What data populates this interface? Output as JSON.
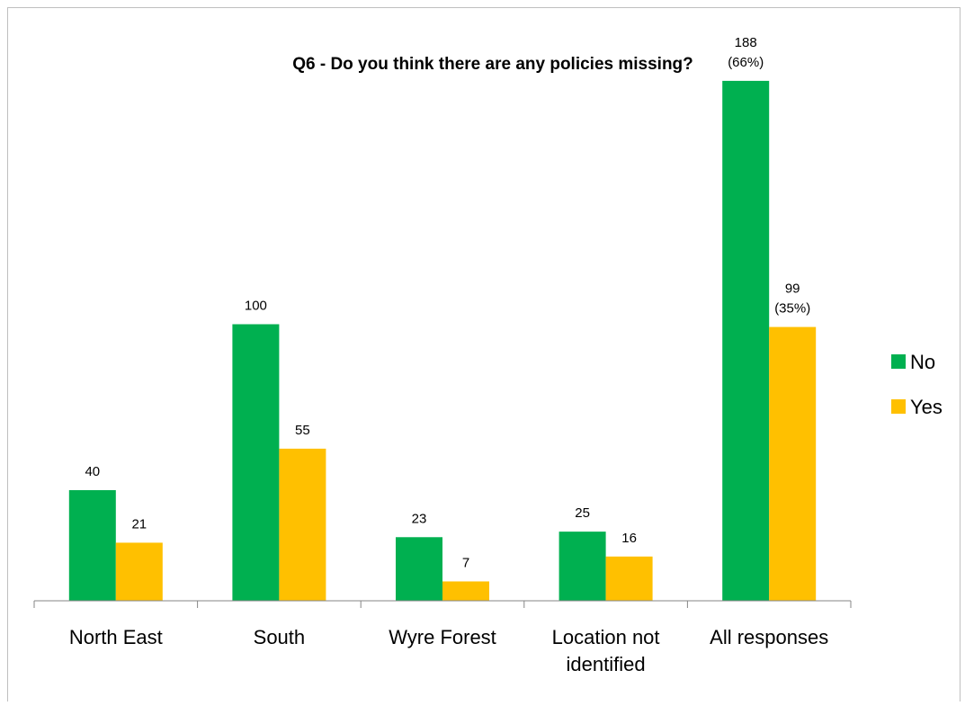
{
  "chart_data": {
    "type": "bar",
    "title": "Q6 - Do you think there are any policies missing?",
    "categories": [
      "North East",
      "South",
      "Wyre Forest",
      "Location not identified",
      "All responses"
    ],
    "category_lines": [
      [
        "North East"
      ],
      [
        "South"
      ],
      [
        "Wyre Forest"
      ],
      [
        "Location not",
        "identified"
      ],
      [
        "All responses"
      ]
    ],
    "series": [
      {
        "name": "No",
        "color": "#00b050",
        "values": [
          40,
          100,
          23,
          25,
          188
        ],
        "labels": [
          [
            "40"
          ],
          [
            "100"
          ],
          [
            "23"
          ],
          [
            "25"
          ],
          [
            "188",
            "(66%)"
          ]
        ]
      },
      {
        "name": "Yes",
        "color": "#ffc000",
        "values": [
          21,
          55,
          7,
          16,
          99
        ],
        "labels": [
          [
            "21"
          ],
          [
            "55"
          ],
          [
            "7"
          ],
          [
            "16"
          ],
          [
            "99",
            "(35%)"
          ]
        ]
      }
    ],
    "ylim": [
      0,
      200
    ],
    "grid": false,
    "legend": "right",
    "xlabel": "",
    "ylabel": ""
  }
}
